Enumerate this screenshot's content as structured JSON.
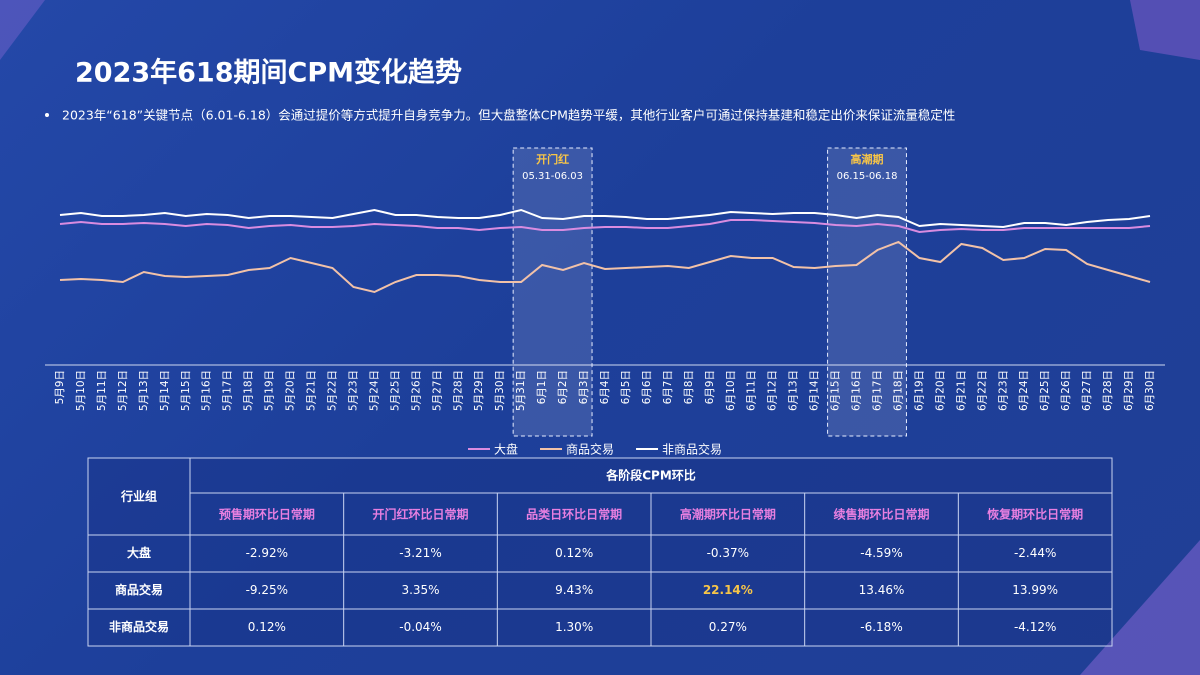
{
  "title": "2023年618期间CPM变化趋势",
  "subtitle": "2023年“618”关键节点（6.01-6.18）会通过提价等方式提升自身竞争力。但大盘整体CPM趋势平缓，其他行业客户可通过保持基建和稳定出价来保证流量稳定性",
  "chart_data": {
    "type": "line",
    "categories": [
      "5月9日",
      "5月10日",
      "5月11日",
      "5月12日",
      "5月13日",
      "5月14日",
      "5月15日",
      "5月16日",
      "5月17日",
      "5月18日",
      "5月19日",
      "5月20日",
      "5月21日",
      "5月22日",
      "5月23日",
      "5月24日",
      "5月25日",
      "5月26日",
      "5月27日",
      "5月28日",
      "5月29日",
      "5月30日",
      "5月31日",
      "6月1日",
      "6月2日",
      "6月3日",
      "6月4日",
      "6月5日",
      "6月6日",
      "6月7日",
      "6月8日",
      "6月9日",
      "6月10日",
      "6月11日",
      "6月12日",
      "6月13日",
      "6月14日",
      "6月15日",
      "6月16日",
      "6月17日",
      "6月18日",
      "6月19日",
      "6月20日",
      "6月21日",
      "6月22日",
      "6月23日",
      "6月24日",
      "6月25日",
      "6月26日",
      "6月27日",
      "6月28日",
      "6月29日",
      "6月30日"
    ],
    "series": [
      {
        "name": "大盘",
        "color": "#d98ce0",
        "values": [
          136,
          138,
          136,
          136,
          137,
          136,
          134,
          136,
          135,
          132,
          134,
          135,
          133,
          133,
          134,
          136,
          135,
          134,
          132,
          132,
          130,
          132,
          133,
          130,
          130,
          132,
          133,
          133,
          132,
          132,
          134,
          136,
          140,
          140,
          139,
          138,
          137,
          135,
          134,
          136,
          134,
          128,
          130,
          131,
          130,
          130,
          132,
          132,
          132,
          132,
          132,
          132,
          134
        ]
      },
      {
        "name": "商品交易",
        "color": "#f2c2a8",
        "values": [
          80,
          81,
          80,
          78,
          88,
          84,
          83,
          84,
          85,
          90,
          92,
          102,
          97,
          92,
          73,
          68,
          78,
          85,
          85,
          84,
          80,
          78,
          78,
          95,
          90,
          97,
          91,
          92,
          93,
          94,
          92,
          98,
          104,
          102,
          102,
          93,
          92,
          94,
          95,
          110,
          118,
          102,
          98,
          116,
          112,
          100,
          102,
          111,
          110,
          96,
          90,
          84,
          78
        ]
      },
      {
        "name": "非商品交易",
        "color": "#ffffff",
        "values": [
          145,
          147,
          144,
          144,
          145,
          147,
          144,
          146,
          145,
          142,
          144,
          144,
          143,
          142,
          146,
          150,
          145,
          145,
          143,
          142,
          142,
          145,
          150,
          142,
          141,
          144,
          144,
          143,
          141,
          141,
          143,
          145,
          148,
          147,
          146,
          147,
          147,
          145,
          142,
          145,
          143,
          134,
          136,
          135,
          134,
          133,
          137,
          137,
          135,
          138,
          140,
          141,
          144
        ]
      }
    ],
    "annotations": [
      {
        "label": "开门红",
        "range": "05.31-06.03"
      },
      {
        "label": "高潮期",
        "range": "06.15-06.18"
      }
    ]
  },
  "table": {
    "corner": "行业组",
    "group": "各阶段CPM环比",
    "columns": [
      "预售期环比日常期",
      "开门红环比日常期",
      "品类日环比日常期",
      "高潮期环比日常期",
      "续售期环比日常期",
      "恢复期环比日常期"
    ],
    "rows": [
      {
        "name": "大盘",
        "cells": [
          {
            "text": "-2.92%"
          },
          {
            "text": "-3.21%"
          },
          {
            "text": "0.12%"
          },
          {
            "text": "-0.37%"
          },
          {
            "text": "-4.59%"
          },
          {
            "text": "-2.44%"
          }
        ]
      },
      {
        "name": "商品交易",
        "cells": [
          {
            "text": "-9.25%"
          },
          {
            "text": "3.35%"
          },
          {
            "text": "9.43%"
          },
          {
            "text": "22.14%",
            "color": "#f7c548"
          },
          {
            "text": "13.46%"
          },
          {
            "text": "13.99%"
          }
        ]
      },
      {
        "name": "非商品交易",
        "cells": [
          {
            "text": "0.12%"
          },
          {
            "text": "-0.04%"
          },
          {
            "text": "1.30%"
          },
          {
            "text": "0.27%"
          },
          {
            "text": "-6.18%"
          },
          {
            "text": "-4.12%"
          }
        ]
      }
    ]
  }
}
